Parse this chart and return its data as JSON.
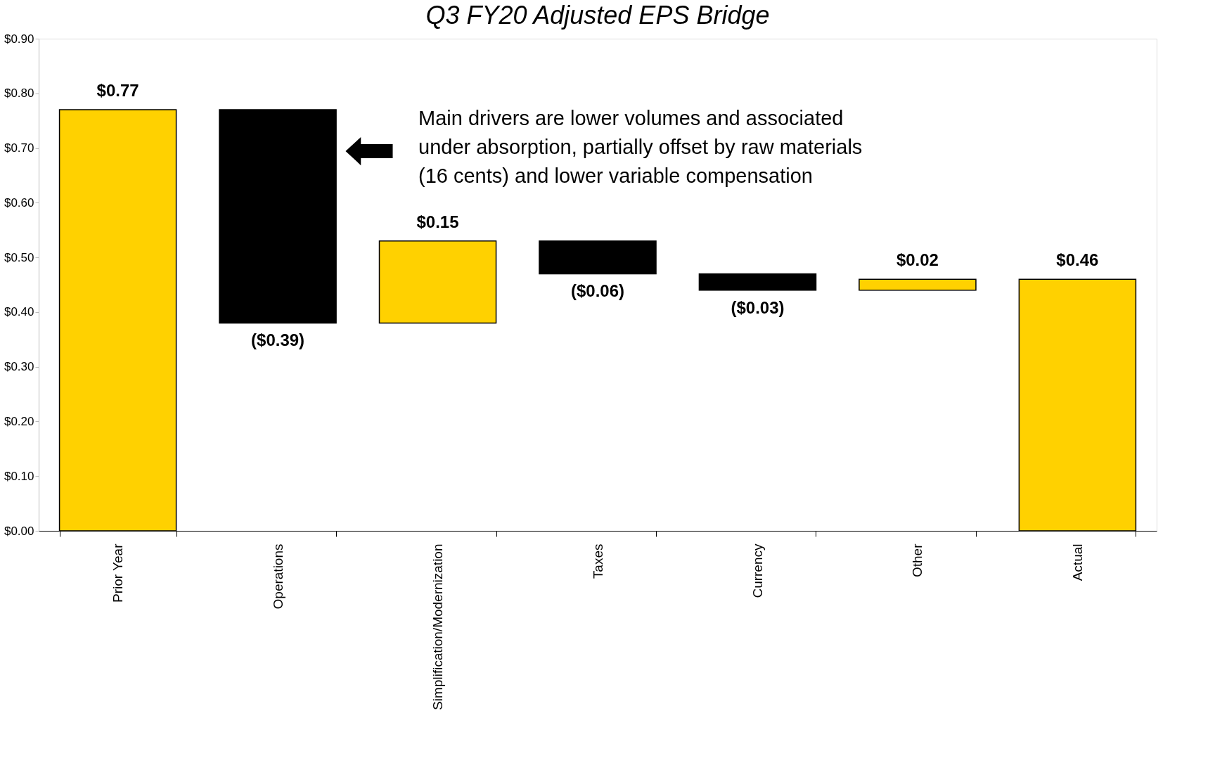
{
  "chart_data": {
    "type": "bar",
    "title": "Q3 FY20 Adjusted EPS Bridge",
    "categories": [
      "Prior Year",
      "Operations",
      "Simplification/Modernization",
      "Taxes",
      "Currency",
      "Other",
      "Actual"
    ],
    "values": [
      0.77,
      -0.39,
      0.15,
      -0.06,
      -0.03,
      0.02,
      0.46
    ],
    "base": [
      0,
      0.77,
      0.38,
      0.53,
      0.47,
      0.44,
      0
    ],
    "colors": [
      "#ffd100",
      "#000000",
      "#ffd100",
      "#000000",
      "#000000",
      "#ffd100",
      "#ffd100"
    ],
    "value_labels": [
      "$0.77",
      "($0.39)",
      "$0.15",
      "($0.06)",
      "($0.03)",
      "$0.02",
      "$0.46"
    ],
    "ylim": [
      0,
      0.9
    ],
    "yticks": [
      {
        "value": 0,
        "label": "$0.00"
      },
      {
        "value": 0.1,
        "label": "$0.10"
      },
      {
        "value": 0.2,
        "label": "$0.20"
      },
      {
        "value": 0.3,
        "label": "$0.30"
      },
      {
        "value": 0.4,
        "label": "$0.40"
      },
      {
        "value": 0.5,
        "label": "$0.50"
      },
      {
        "value": 0.6,
        "label": "$0.60"
      },
      {
        "value": 0.7,
        "label": "$0.70"
      },
      {
        "value": 0.8,
        "label": "$0.80"
      },
      {
        "value": 0.9,
        "label": "$0.90"
      }
    ],
    "annotations": [
      "Main drivers are lower volumes and associated\nunder absorption, partially offset by raw materials\n(16 cents) and lower variable compensation"
    ],
    "grid": false
  }
}
